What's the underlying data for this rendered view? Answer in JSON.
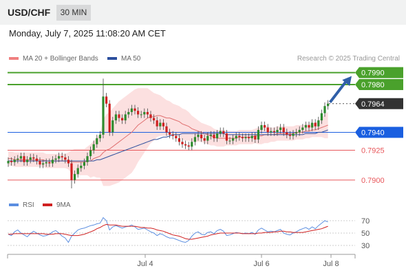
{
  "header": {
    "symbol": "USD/CHF",
    "timeframe": "30 MIN"
  },
  "datetime": "Monday, July 7, 2025 11:08:20 AM CET",
  "legend": {
    "ma20": "MA 20 + Bollinger Bands",
    "ma50": "MA 50",
    "credit": "Research © 2025 Trading Central"
  },
  "rsi_legend": {
    "rsi": "RSI",
    "ma9": "9MA"
  },
  "colors": {
    "green": "#4aa12c",
    "blue": "#1a5fe0",
    "red": "#e8565a",
    "band": "#fbdada",
    "candle_up": "#2e8b2e",
    "candle_down": "#d02020",
    "ma50": "#2c4f9e",
    "dark": "#333333",
    "rsi_line": "#5b8ee0",
    "rsi_ma": "#d02020"
  },
  "chart_data": [
    {
      "type": "candlestick",
      "title": "USD/CHF 30 MIN",
      "ylim": [
        0.7893,
        0.7995
      ],
      "x_ticks": [
        "Jul 4",
        "Jul 6",
        "Jul 8"
      ],
      "levels": [
        {
          "value": 0.799,
          "label": "0.7990",
          "kind": "resistance",
          "color": "#4aa12c"
        },
        {
          "value": 0.798,
          "label": "0.7980",
          "kind": "resistance",
          "color": "#4aa12c"
        },
        {
          "value": 0.7964,
          "label": "0.7964",
          "kind": "last-price",
          "color": "#333333"
        },
        {
          "value": 0.794,
          "label": "0.7940",
          "kind": "pivot",
          "color": "#1a5fe0"
        },
        {
          "value": 0.7925,
          "label": "0.7925",
          "kind": "support",
          "color": "#e8565a"
        },
        {
          "value": 0.79,
          "label": "0.7900",
          "kind": "support",
          "color": "#e8565a"
        }
      ],
      "series": [
        {
          "name": "MA 20 + Bollinger Bands",
          "color": "#f08080"
        },
        {
          "name": "MA 50",
          "color": "#2c4f9e"
        }
      ],
      "close": [
        0.7916,
        0.7915,
        0.7917,
        0.7918,
        0.792,
        0.7915,
        0.7917,
        0.7919,
        0.7918,
        0.7916,
        0.7913,
        0.7914,
        0.7915,
        0.7914,
        0.7917,
        0.7918,
        0.792,
        0.7919,
        0.7917,
        0.7914,
        0.79,
        0.7905,
        0.791,
        0.7912,
        0.7915,
        0.792,
        0.7925,
        0.793,
        0.7935,
        0.7938,
        0.797,
        0.7964,
        0.794,
        0.795,
        0.7955,
        0.7952,
        0.795,
        0.7955,
        0.7957,
        0.796,
        0.7958,
        0.7955,
        0.7955,
        0.7957,
        0.7955,
        0.7952,
        0.795,
        0.7945,
        0.7948,
        0.7945,
        0.794,
        0.7938,
        0.7937,
        0.7935,
        0.7932,
        0.793,
        0.7929,
        0.7928,
        0.7932,
        0.7936,
        0.7938,
        0.7935,
        0.7933,
        0.7937,
        0.7938,
        0.7935,
        0.7939,
        0.7941,
        0.7939,
        0.7933,
        0.7933,
        0.7935,
        0.7937,
        0.7936,
        0.7935,
        0.7936,
        0.7935,
        0.7937,
        0.7934,
        0.7942,
        0.7946,
        0.7944,
        0.794,
        0.7941,
        0.794,
        0.7942,
        0.7944,
        0.794,
        0.7938,
        0.7937,
        0.7939,
        0.794,
        0.7942,
        0.7944,
        0.7946,
        0.7944,
        0.7948,
        0.7945,
        0.795,
        0.7956,
        0.7962,
        0.7964
      ],
      "ma20": [
        0.7918,
        0.7918,
        0.7917,
        0.7917,
        0.7917,
        0.7917,
        0.7917,
        0.7917,
        0.7917,
        0.7917,
        0.7917,
        0.7917,
        0.7916,
        0.7916,
        0.7916,
        0.7916,
        0.7916,
        0.7916,
        0.7916,
        0.7916,
        0.7915,
        0.7915,
        0.7915,
        0.7915,
        0.7915,
        0.7916,
        0.7916,
        0.7918,
        0.7919,
        0.792,
        0.7923,
        0.7925,
        0.7926,
        0.7928,
        0.793,
        0.7932,
        0.7934,
        0.7936,
        0.7938,
        0.794,
        0.7943,
        0.7946,
        0.7948,
        0.795,
        0.7952,
        0.7953,
        0.7953,
        0.7954,
        0.7954,
        0.7953,
        0.7952,
        0.7952,
        0.7951,
        0.795,
        0.7949,
        0.7947,
        0.7946,
        0.7945,
        0.7943,
        0.7942,
        0.7941,
        0.794,
        0.7939,
        0.7938,
        0.7937,
        0.7936,
        0.7935,
        0.7935,
        0.7935,
        0.7935,
        0.7935,
        0.7935,
        0.7935,
        0.7936,
        0.7936,
        0.7936,
        0.7936,
        0.7936,
        0.7937,
        0.7937,
        0.7937,
        0.7938,
        0.7938,
        0.7938,
        0.7938,
        0.7939,
        0.7939,
        0.7939,
        0.7939,
        0.7939,
        0.7939,
        0.794,
        0.794,
        0.794,
        0.7941,
        0.7941,
        0.7942,
        0.7942,
        0.7943,
        0.7944,
        0.7945,
        0.7946
      ],
      "band_width": [
        0.0006,
        0.0006,
        0.0006,
        0.0006,
        0.0006,
        0.0006,
        0.0006,
        0.0006,
        0.0006,
        0.0006,
        0.0006,
        0.0006,
        0.0006,
        0.0006,
        0.0006,
        0.0006,
        0.0006,
        0.0006,
        0.0006,
        0.0007,
        0.001,
        0.0011,
        0.0011,
        0.0011,
        0.0011,
        0.0012,
        0.0014,
        0.0015,
        0.0017,
        0.0018,
        0.0028,
        0.003,
        0.0031,
        0.0032,
        0.0033,
        0.0034,
        0.0034,
        0.0034,
        0.0034,
        0.0034,
        0.0033,
        0.0031,
        0.0029,
        0.0027,
        0.0025,
        0.0022,
        0.002,
        0.0018,
        0.0017,
        0.0016,
        0.0015,
        0.0014,
        0.0013,
        0.0013,
        0.0013,
        0.0013,
        0.0013,
        0.0012,
        0.0011,
        0.001,
        0.0009,
        0.0008,
        0.0008,
        0.0008,
        0.0008,
        0.0007,
        0.0007,
        0.0007,
        0.0007,
        0.0006,
        0.0006,
        0.0006,
        0.0006,
        0.0006,
        0.0006,
        0.0006,
        0.0006,
        0.0006,
        0.0006,
        0.0007,
        0.0007,
        0.0007,
        0.0007,
        0.0006,
        0.0006,
        0.0006,
        0.0006,
        0.0006,
        0.0006,
        0.0006,
        0.0006,
        0.0006,
        0.0006,
        0.0006,
        0.0006,
        0.0006,
        0.0006,
        0.0006,
        0.0007,
        0.0008,
        0.001,
        0.0011
      ],
      "ma50": [
        0.7916,
        0.7916,
        0.7916,
        0.7916,
        0.7916,
        0.7916,
        0.7916,
        0.7916,
        0.7916,
        0.7916,
        0.7916,
        0.7916,
        0.7916,
        0.7916,
        0.7916,
        0.7916,
        0.7916,
        0.7916,
        0.7916,
        0.7916,
        0.7916,
        0.7916,
        0.7916,
        0.7916,
        0.7916,
        0.7916,
        0.7916,
        0.7916,
        0.7917,
        0.7917,
        0.7918,
        0.7919,
        0.792,
        0.7921,
        0.7922,
        0.7923,
        0.7924,
        0.7925,
        0.7926,
        0.7927,
        0.7928,
        0.7929,
        0.793,
        0.7931,
        0.7932,
        0.7933,
        0.7934,
        0.7934,
        0.7935,
        0.7936,
        0.7936,
        0.7937,
        0.7938,
        0.7938,
        0.7938,
        0.7939,
        0.7939,
        0.7939,
        0.7939,
        0.7939,
        0.7939,
        0.7939,
        0.7939,
        0.7939,
        0.7939,
        0.7939,
        0.7939,
        0.7939,
        0.7939,
        0.7938,
        0.7938,
        0.7938,
        0.7938,
        0.7938,
        0.7938,
        0.7938,
        0.7938,
        0.7938,
        0.7938,
        0.7938,
        0.7938,
        0.7938,
        0.7938,
        0.7938,
        0.7938,
        0.7938,
        0.7938,
        0.7938,
        0.7938,
        0.7938,
        0.7938,
        0.7938,
        0.7938,
        0.7938,
        0.7939,
        0.7939,
        0.7939,
        0.7939,
        0.794,
        0.794,
        0.7941,
        0.7942
      ],
      "projection": [
        0.7964,
        0.799
      ]
    },
    {
      "type": "line",
      "title": "RSI",
      "ylim": [
        20,
        80
      ],
      "y_ticks": [
        70,
        50,
        30
      ],
      "series": [
        {
          "name": "RSI",
          "color": "#5b8ee0"
        },
        {
          "name": "9MA",
          "color": "#d02020"
        }
      ],
      "rsi": [
        48,
        46,
        52,
        55,
        50,
        47,
        44,
        49,
        53,
        50,
        47,
        45,
        46,
        48,
        52,
        54,
        50,
        45,
        42,
        35,
        45,
        50,
        55,
        57,
        58,
        60,
        62,
        63,
        65,
        66,
        75,
        70,
        55,
        60,
        62,
        60,
        58,
        60,
        61,
        63,
        60,
        56,
        57,
        58,
        55,
        52,
        50,
        46,
        49,
        47,
        44,
        42,
        42,
        40,
        38,
        36,
        35,
        38,
        45,
        50,
        52,
        48,
        47,
        51,
        52,
        49,
        54,
        56,
        53,
        46,
        47,
        49,
        51,
        50,
        49,
        50,
        49,
        51,
        48,
        55,
        58,
        55,
        52,
        53,
        52,
        54,
        56,
        50,
        48,
        47,
        50,
        52,
        55,
        57,
        59,
        56,
        60,
        57,
        62,
        66,
        70,
        68
      ],
      "ma9": [
        48,
        48,
        49,
        49,
        49,
        49,
        49,
        49,
        49,
        49,
        49,
        49,
        48,
        48,
        48,
        49,
        49,
        49,
        48,
        47,
        46,
        46,
        46,
        47,
        48,
        50,
        52,
        54,
        57,
        59,
        62,
        64,
        63,
        63,
        63,
        62,
        61,
        61,
        61,
        61,
        61,
        60,
        59,
        59,
        58,
        58,
        57,
        55,
        54,
        53,
        51,
        49,
        47,
        46,
        45,
        43,
        41,
        40,
        40,
        41,
        42,
        43,
        44,
        45,
        47,
        48,
        49,
        50,
        50,
        50,
        50,
        50,
        50,
        50,
        49,
        49,
        49,
        49,
        49,
        50,
        50,
        51,
        51,
        51,
        52,
        52,
        53,
        53,
        52,
        52,
        51,
        51,
        51,
        51,
        52,
        53,
        54,
        55,
        56,
        57,
        59,
        61
      ]
    }
  ]
}
